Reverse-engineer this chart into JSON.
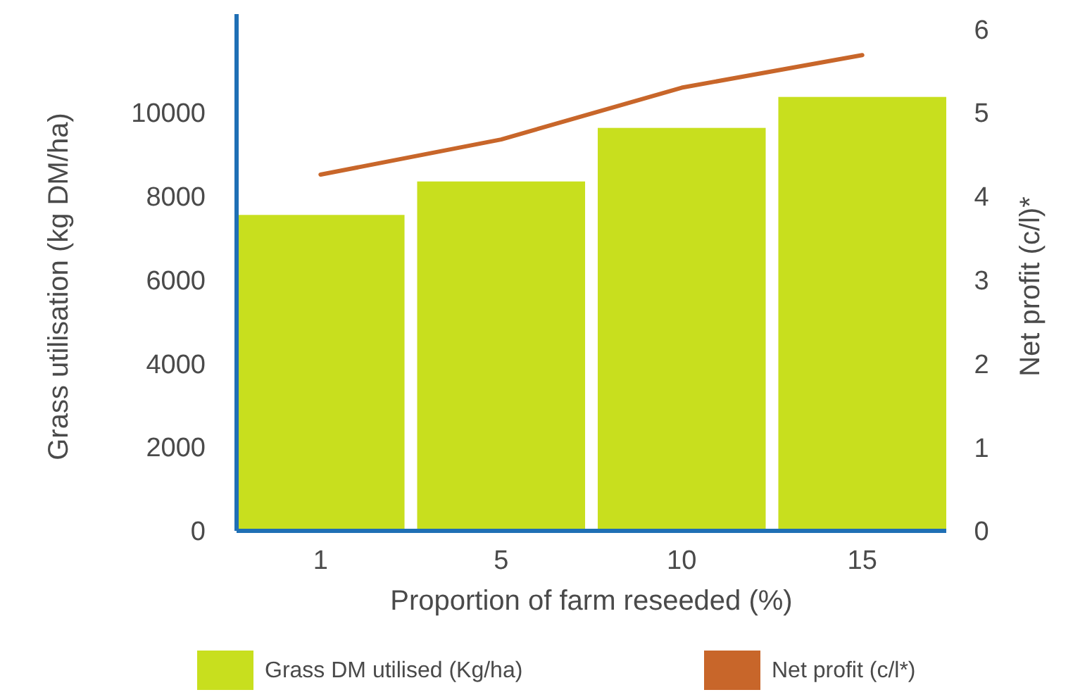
{
  "chart_data": {
    "type": "bar",
    "xlabel": "Proportion of farm reseeded (%)",
    "ylabel": "Grass utilisation (kg DM/ha)",
    "y2label": "Net profit (c/l)*",
    "categories": [
      "1",
      "5",
      "10",
      "15"
    ],
    "series": [
      {
        "name": "Grass DM utilised (Kg/ha)",
        "color": "#c8df1e",
        "values": [
          7550,
          8350,
          9630,
          10370
        ]
      },
      {
        "name": "Net profit (c/l*)",
        "type": "line",
        "axis": "y2",
        "color": "#c8662a",
        "values": [
          4.26,
          4.68,
          5.3,
          5.69
        ]
      }
    ],
    "ylim": [
      0,
      12350
    ],
    "yticks": [
      0,
      2000,
      4000,
      6000,
      8000,
      10000
    ],
    "y2lim": [
      0,
      6.18
    ],
    "y2ticks": [
      0,
      1,
      2,
      3,
      4,
      5,
      6
    ],
    "grid": false,
    "legend": "bottom"
  }
}
